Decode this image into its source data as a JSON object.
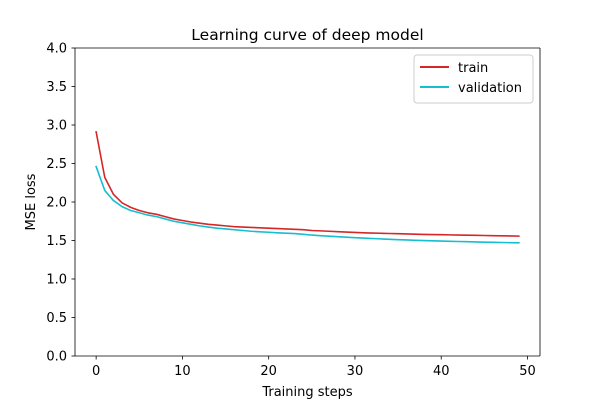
{
  "chart_data": {
    "type": "line",
    "title": "Learning curve of deep model",
    "xlabel": "Training steps",
    "ylabel": "MSE loss",
    "xlim": [
      -2.45,
      51.45
    ],
    "ylim": [
      0,
      4.0
    ],
    "xticks": [
      0,
      10,
      20,
      30,
      40,
      50
    ],
    "yticks": [
      0.0,
      0.5,
      1.0,
      1.5,
      2.0,
      2.5,
      3.0,
      3.5,
      4.0
    ],
    "ytick_labels": [
      "0.0",
      "0.5",
      "1.0",
      "1.5",
      "2.0",
      "2.5",
      "3.0",
      "3.5",
      "4.0"
    ],
    "xtick_labels": [
      "0",
      "10",
      "20",
      "30",
      "40",
      "50"
    ],
    "grid": false,
    "legend_position": "top-right",
    "x": [
      0,
      1,
      2,
      3,
      4,
      5,
      6,
      7,
      8,
      9,
      10,
      11,
      12,
      13,
      14,
      15,
      16,
      17,
      18,
      19,
      20,
      21,
      22,
      23,
      24,
      25,
      26,
      27,
      28,
      29,
      30,
      31,
      32,
      33,
      34,
      35,
      36,
      37,
      38,
      39,
      40,
      41,
      42,
      43,
      44,
      45,
      46,
      47,
      48,
      49
    ],
    "series": [
      {
        "name": "train",
        "color": "#d62728",
        "values": [
          2.91,
          2.32,
          2.1,
          1.99,
          1.93,
          1.89,
          1.86,
          1.84,
          1.81,
          1.78,
          1.76,
          1.74,
          1.725,
          1.71,
          1.7,
          1.69,
          1.68,
          1.675,
          1.67,
          1.665,
          1.66,
          1.655,
          1.65,
          1.645,
          1.64,
          1.63,
          1.625,
          1.62,
          1.615,
          1.61,
          1.605,
          1.6,
          1.597,
          1.594,
          1.591,
          1.588,
          1.585,
          1.582,
          1.579,
          1.577,
          1.575,
          1.573,
          1.571,
          1.569,
          1.567,
          1.565,
          1.563,
          1.561,
          1.559,
          1.557
        ]
      },
      {
        "name": "validation",
        "color": "#17becf",
        "values": [
          2.46,
          2.15,
          2.02,
          1.94,
          1.89,
          1.86,
          1.83,
          1.81,
          1.78,
          1.75,
          1.73,
          1.71,
          1.69,
          1.675,
          1.66,
          1.65,
          1.64,
          1.63,
          1.62,
          1.613,
          1.607,
          1.6,
          1.595,
          1.59,
          1.58,
          1.57,
          1.563,
          1.556,
          1.549,
          1.543,
          1.537,
          1.531,
          1.526,
          1.521,
          1.516,
          1.511,
          1.507,
          1.503,
          1.499,
          1.496,
          1.493,
          1.49,
          1.487,
          1.484,
          1.481,
          1.478,
          1.476,
          1.474,
          1.472,
          1.47
        ]
      }
    ]
  }
}
